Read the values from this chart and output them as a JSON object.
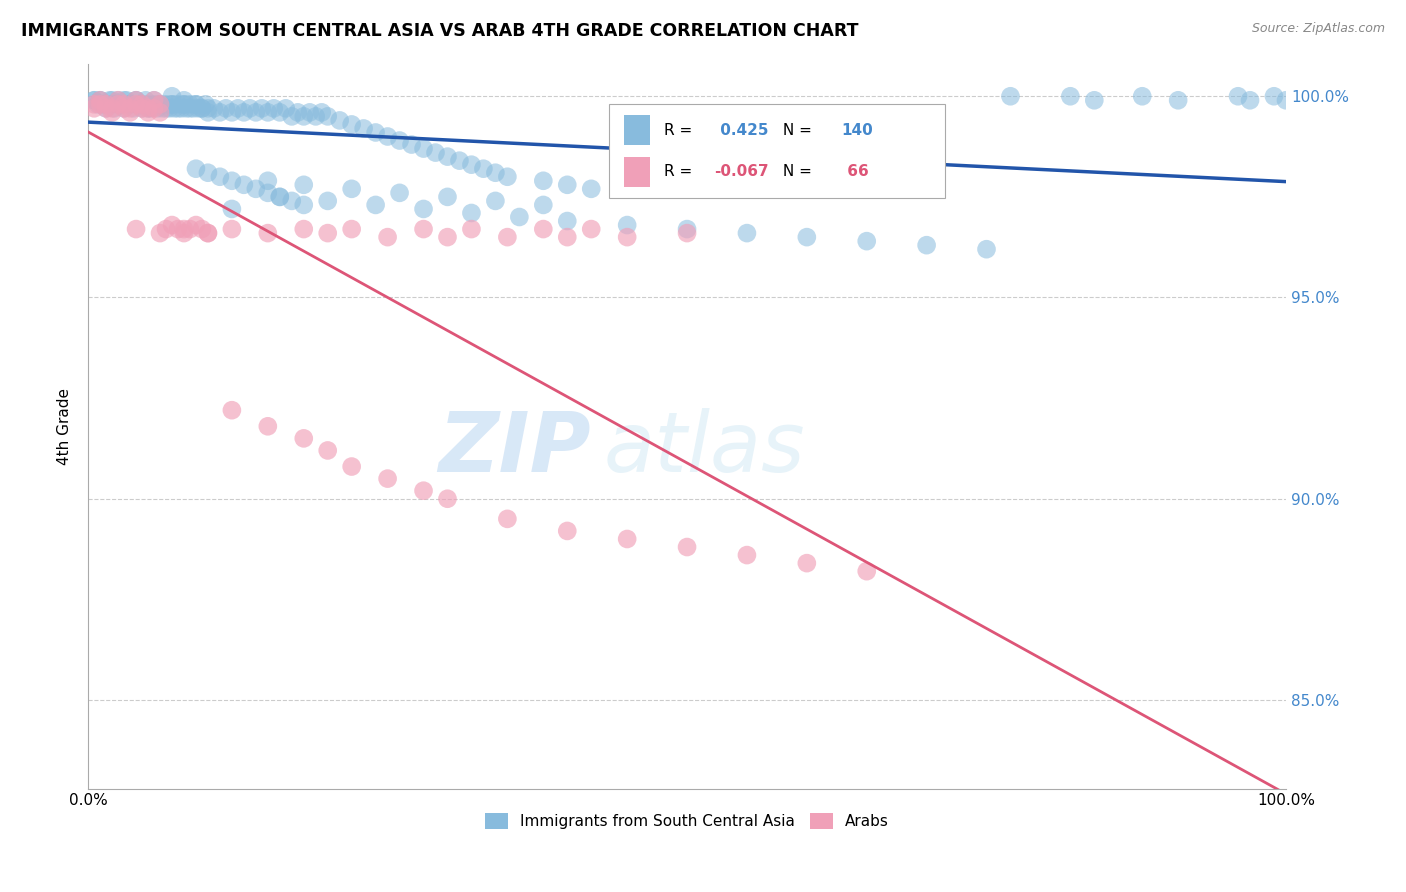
{
  "title": "IMMIGRANTS FROM SOUTH CENTRAL ASIA VS ARAB 4TH GRADE CORRELATION CHART",
  "source": "Source: ZipAtlas.com",
  "ylabel": "4th Grade",
  "y_ticks": [
    0.85,
    0.9,
    0.95,
    1.0
  ],
  "y_tick_labels": [
    "85.0%",
    "90.0%",
    "95.0%",
    "100.0%"
  ],
  "watermark_zip": "ZIP",
  "watermark_atlas": "atlas",
  "legend_blue_label": "Immigrants from South Central Asia",
  "legend_pink_label": "Arabs",
  "r_blue": 0.425,
  "n_blue": 140,
  "r_pink": -0.067,
  "n_pink": 66,
  "blue_color": "#88BBDD",
  "pink_color": "#F0A0B8",
  "trendline_blue_color": "#2255AA",
  "trendline_pink_color": "#DD5577",
  "ylim_low": 0.828,
  "ylim_high": 1.008,
  "xlim_low": 0.0,
  "xlim_high": 1.0,
  "blue_x": [
    0.005,
    0.008,
    0.01,
    0.012,
    0.015,
    0.018,
    0.02,
    0.022,
    0.025,
    0.028,
    0.03,
    0.032,
    0.035,
    0.038,
    0.04,
    0.042,
    0.045,
    0.048,
    0.05,
    0.052,
    0.055,
    0.058,
    0.06,
    0.062,
    0.065,
    0.068,
    0.07,
    0.072,
    0.075,
    0.078,
    0.08,
    0.082,
    0.085,
    0.088,
    0.09,
    0.092,
    0.095,
    0.098,
    0.1,
    0.005,
    0.01,
    0.015,
    0.02,
    0.025,
    0.03,
    0.035,
    0.04,
    0.045,
    0.05,
    0.055,
    0.06,
    0.065,
    0.07,
    0.075,
    0.08,
    0.085,
    0.09,
    0.095,
    0.1,
    0.105,
    0.11,
    0.115,
    0.12,
    0.125,
    0.13,
    0.135,
    0.14,
    0.145,
    0.15,
    0.155,
    0.16,
    0.165,
    0.17,
    0.175,
    0.18,
    0.185,
    0.19,
    0.195,
    0.2,
    0.21,
    0.22,
    0.23,
    0.24,
    0.25,
    0.26,
    0.27,
    0.28,
    0.29,
    0.3,
    0.31,
    0.32,
    0.33,
    0.34,
    0.35,
    0.38,
    0.4,
    0.42,
    0.15,
    0.18,
    0.22,
    0.26,
    0.3,
    0.34,
    0.38,
    0.12,
    0.16,
    0.2,
    0.24,
    0.28,
    0.32,
    0.36,
    0.4,
    0.45,
    0.5,
    0.55,
    0.6,
    0.65,
    0.7,
    0.75,
    0.77,
    0.82,
    0.84,
    0.88,
    0.91,
    0.96,
    0.97,
    0.99,
    1.0,
    0.07,
    0.08,
    0.09,
    0.1,
    0.11,
    0.12,
    0.13,
    0.14,
    0.15,
    0.16,
    0.17,
    0.18,
    0.19,
    0.2
  ],
  "blue_y": [
    0.999,
    0.998,
    0.999,
    0.998,
    0.997,
    0.999,
    0.998,
    0.997,
    0.999,
    0.998,
    0.997,
    0.999,
    0.998,
    0.997,
    0.999,
    0.998,
    0.997,
    0.999,
    0.998,
    0.997,
    0.998,
    0.997,
    0.998,
    0.997,
    0.998,
    0.997,
    0.998,
    0.997,
    0.998,
    0.997,
    0.998,
    0.997,
    0.998,
    0.997,
    0.998,
    0.997,
    0.997,
    0.998,
    0.997,
    0.999,
    0.999,
    0.998,
    0.999,
    0.998,
    0.999,
    0.998,
    0.999,
    0.998,
    0.997,
    0.999,
    0.998,
    0.997,
    0.998,
    0.997,
    0.998,
    0.997,
    0.998,
    0.997,
    0.996,
    0.997,
    0.996,
    0.997,
    0.996,
    0.997,
    0.996,
    0.997,
    0.996,
    0.997,
    0.996,
    0.997,
    0.996,
    0.997,
    0.995,
    0.996,
    0.995,
    0.996,
    0.995,
    0.996,
    0.995,
    0.994,
    0.993,
    0.992,
    0.991,
    0.99,
    0.989,
    0.988,
    0.987,
    0.986,
    0.985,
    0.984,
    0.983,
    0.982,
    0.981,
    0.98,
    0.979,
    0.978,
    0.977,
    0.979,
    0.978,
    0.977,
    0.976,
    0.975,
    0.974,
    0.973,
    0.972,
    0.975,
    0.974,
    0.973,
    0.972,
    0.971,
    0.97,
    0.969,
    0.968,
    0.967,
    0.966,
    0.965,
    0.964,
    0.963,
    0.962,
    1.0,
    1.0,
    0.999,
    1.0,
    0.999,
    1.0,
    0.999,
    1.0,
    0.999,
    1.0,
    0.999,
    0.982,
    0.981,
    0.98,
    0.979,
    0.978,
    0.977,
    0.976,
    0.975,
    0.974,
    0.973,
    0.972,
    0.971,
    0.97,
    0.969
  ],
  "pink_x": [
    0.005,
    0.01,
    0.015,
    0.02,
    0.025,
    0.03,
    0.035,
    0.04,
    0.045,
    0.05,
    0.055,
    0.06,
    0.065,
    0.07,
    0.075,
    0.08,
    0.085,
    0.09,
    0.095,
    0.1,
    0.005,
    0.01,
    0.015,
    0.02,
    0.025,
    0.03,
    0.035,
    0.04,
    0.045,
    0.05,
    0.055,
    0.06,
    0.04,
    0.06,
    0.08,
    0.1,
    0.12,
    0.15,
    0.18,
    0.2,
    0.22,
    0.25,
    0.28,
    0.3,
    0.32,
    0.35,
    0.38,
    0.4,
    0.42,
    0.45,
    0.5,
    0.12,
    0.15,
    0.18,
    0.2,
    0.22,
    0.25,
    0.28,
    0.3,
    0.35,
    0.4,
    0.45,
    0.5,
    0.55,
    0.6,
    0.65
  ],
  "pink_y": [
    0.998,
    0.999,
    0.998,
    0.997,
    0.999,
    0.998,
    0.997,
    0.999,
    0.998,
    0.997,
    0.999,
    0.998,
    0.967,
    0.968,
    0.967,
    0.966,
    0.967,
    0.968,
    0.967,
    0.966,
    0.997,
    0.998,
    0.997,
    0.996,
    0.998,
    0.997,
    0.996,
    0.998,
    0.997,
    0.996,
    0.997,
    0.996,
    0.967,
    0.966,
    0.967,
    0.966,
    0.967,
    0.966,
    0.967,
    0.966,
    0.967,
    0.965,
    0.967,
    0.965,
    0.967,
    0.965,
    0.967,
    0.965,
    0.967,
    0.965,
    0.966,
    0.922,
    0.918,
    0.915,
    0.912,
    0.908,
    0.905,
    0.902,
    0.9,
    0.895,
    0.892,
    0.89,
    0.888,
    0.886,
    0.884,
    0.882
  ]
}
